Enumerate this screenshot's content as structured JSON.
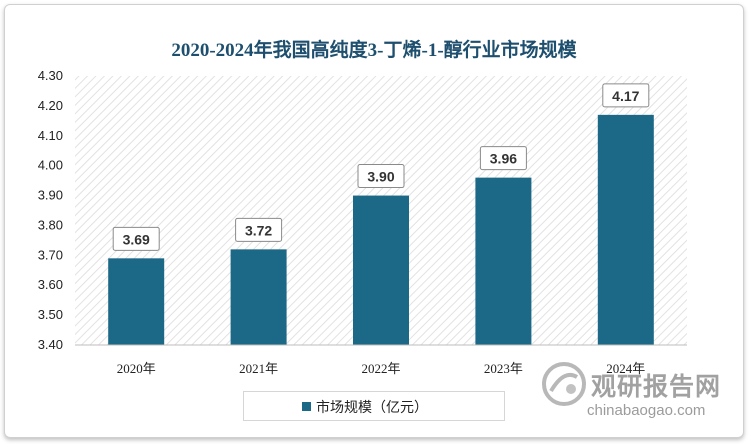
{
  "chart_data": {
    "type": "bar",
    "title": "2020-2024年我国高纯度3-丁烯-1-醇行业市场规模",
    "categories": [
      "2020年",
      "2021年",
      "2022年",
      "2023年",
      "2024年"
    ],
    "series": [
      {
        "name": "市场规模（亿元）",
        "values": [
          3.69,
          3.72,
          3.9,
          3.96,
          4.17
        ]
      }
    ],
    "data_labels": [
      "3.69",
      "3.72",
      "3.90",
      "3.96",
      "4.17"
    ],
    "ylim": [
      3.4,
      4.3
    ],
    "yticks": [
      "3.40",
      "3.50",
      "3.60",
      "3.70",
      "3.80",
      "3.90",
      "4.00",
      "4.10",
      "4.20",
      "4.30"
    ],
    "xlabel": "",
    "ylabel": "",
    "legend_position": "bottom",
    "plot_background": "diagonal-hatch",
    "colors": {
      "bar": "#1b6987",
      "title": "#1e4f6e"
    }
  },
  "watermark": {
    "brand_cn": "观研报告网",
    "url": "chinabaogao.com"
  }
}
